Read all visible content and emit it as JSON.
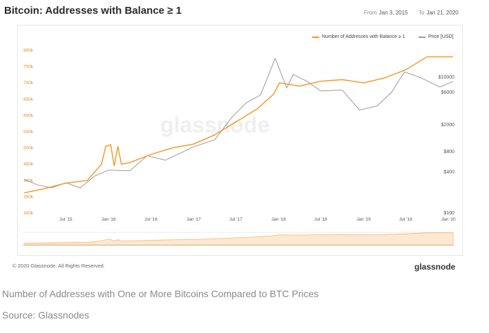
{
  "header": {
    "title": "Bitcoin: Addresses with Balance ≥ 1",
    "from_label": "From",
    "from_value": "Jan 3, 2015",
    "to_label": "To",
    "to_value": "Jan 21, 2020"
  },
  "footer": {
    "copyright": "© 2020 Glassnode. All Rights Reserved.",
    "brand": "glassnode",
    "watermark": "glassnode"
  },
  "caption": {
    "text": "Number of Addresses with One or More Bitcoins Compared to BTC Prices",
    "source": "Source: Glassnodes"
  },
  "colors": {
    "addresses": "#f7931a",
    "price": "#999999",
    "left_ticks": "#e08a2e"
  },
  "chart_data": {
    "type": "line",
    "x_ticks": [
      "Jul '15",
      "Jan '16",
      "Jul '16",
      "Jan '17",
      "Jul '17",
      "Jan '18",
      "Jul '18",
      "Jan '19",
      "Jul '19",
      "Jan '20"
    ],
    "y_left": {
      "ticks": [
        "300k",
        "350k",
        "400k",
        "450k",
        "500k",
        "550k",
        "600k",
        "650k",
        "700k",
        "750k",
        "800k"
      ],
      "range": [
        300000,
        800000
      ]
    },
    "y_right": {
      "scale": "log",
      "ticks": [
        "$100",
        "$400",
        "$800",
        "$2000",
        "$6000",
        "$10000"
      ],
      "range": [
        100,
        25000
      ]
    },
    "legend_position": "top-right",
    "grid": false,
    "series": [
      {
        "name": "Number of Addresses with Balance ≥ 1",
        "axis": "left",
        "points": [
          [
            "2015-01-03",
            362000
          ],
          [
            "2015-04-01",
            375000
          ],
          [
            "2015-07-01",
            392000
          ],
          [
            "2015-10-01",
            400000
          ],
          [
            "2015-12-01",
            450000
          ],
          [
            "2015-12-20",
            505000
          ],
          [
            "2016-01-10",
            510000
          ],
          [
            "2016-01-25",
            445000
          ],
          [
            "2016-02-10",
            505000
          ],
          [
            "2016-02-25",
            450000
          ],
          [
            "2016-04-01",
            455000
          ],
          [
            "2016-07-01",
            480000
          ],
          [
            "2016-10-01",
            500000
          ],
          [
            "2017-01-01",
            512000
          ],
          [
            "2017-04-01",
            540000
          ],
          [
            "2017-07-01",
            580000
          ],
          [
            "2017-10-01",
            620000
          ],
          [
            "2017-12-10",
            665000
          ],
          [
            "2018-01-05",
            700000
          ],
          [
            "2018-04-01",
            690000
          ],
          [
            "2018-07-01",
            705000
          ],
          [
            "2018-10-01",
            710000
          ],
          [
            "2019-01-01",
            700000
          ],
          [
            "2019-04-01",
            715000
          ],
          [
            "2019-07-01",
            740000
          ],
          [
            "2019-10-01",
            780000
          ],
          [
            "2020-01-21",
            780000
          ]
        ]
      },
      {
        "name": "Price [USD]",
        "axis": "right",
        "points": [
          [
            "2015-01-03",
            315
          ],
          [
            "2015-03-01",
            260
          ],
          [
            "2015-05-01",
            235
          ],
          [
            "2015-07-01",
            280
          ],
          [
            "2015-09-01",
            235
          ],
          [
            "2015-11-01",
            350
          ],
          [
            "2016-01-01",
            430
          ],
          [
            "2016-04-01",
            420
          ],
          [
            "2016-06-15",
            700
          ],
          [
            "2016-09-01",
            600
          ],
          [
            "2017-01-01",
            950
          ],
          [
            "2017-04-01",
            1200
          ],
          [
            "2017-06-15",
            2600
          ],
          [
            "2017-08-15",
            4200
          ],
          [
            "2017-10-15",
            5500
          ],
          [
            "2017-12-17",
            19000
          ],
          [
            "2018-02-05",
            7000
          ],
          [
            "2018-03-05",
            11000
          ],
          [
            "2018-05-01",
            8800
          ],
          [
            "2018-07-01",
            6300
          ],
          [
            "2018-10-01",
            6500
          ],
          [
            "2018-12-15",
            3300
          ],
          [
            "2019-03-01",
            3800
          ],
          [
            "2019-05-01",
            6000
          ],
          [
            "2019-06-26",
            12000
          ],
          [
            "2019-09-01",
            10000
          ],
          [
            "2019-11-25",
            7200
          ],
          [
            "2020-01-21",
            8700
          ]
        ]
      }
    ]
  }
}
